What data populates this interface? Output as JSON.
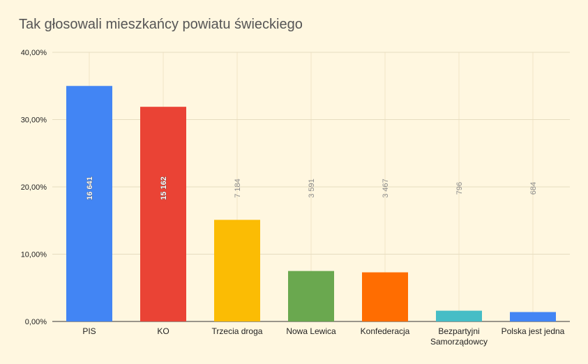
{
  "chart_data": {
    "type": "bar",
    "title": "Tak głosowali mieszkańcy powiatu świeckiego",
    "xlabel": "",
    "ylabel": "",
    "ylim": [
      0,
      40
    ],
    "y_ticks": [
      "0,00%",
      "10,00%",
      "20,00%",
      "30,00%",
      "40,00%"
    ],
    "grid": true,
    "categories": [
      [
        "PIS"
      ],
      [
        "KO"
      ],
      [
        "Trzecia droga"
      ],
      [
        "Nowa Lewica"
      ],
      [
        "Konfederacja"
      ],
      [
        "Bezpartyjni",
        "Samorządowcy"
      ],
      [
        "Polska jest jedna"
      ]
    ],
    "values": [
      35.0,
      31.9,
      15.1,
      7.5,
      7.3,
      1.6,
      1.4
    ],
    "data_labels": [
      "16 641",
      "15 162",
      "7 184",
      "3 591",
      "3 467",
      "796",
      "684"
    ],
    "colors": [
      "#4285f4",
      "#ea4335",
      "#fbbc04",
      "#6aa84f",
      "#ff6d01",
      "#46bdc6",
      "#4285f4"
    ]
  }
}
